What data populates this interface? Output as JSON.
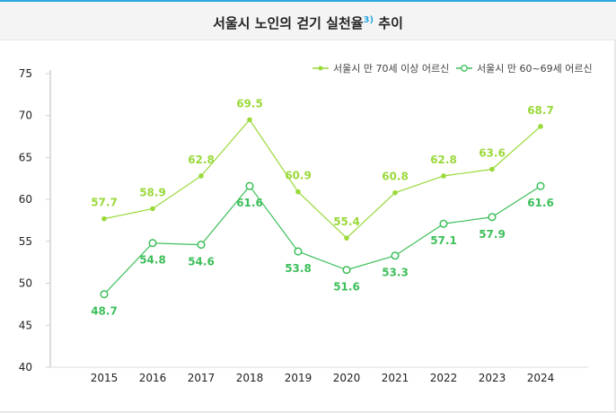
{
  "title": {
    "text": "서울시 노인의 걷기 실천율",
    "footnote": "3)",
    "suffix": " 추이"
  },
  "colors": {
    "accent_top": "#2aa7e0",
    "series_70_plus": "#9ad93a",
    "series_60_69": "#3dbf5a"
  },
  "chart_data": {
    "type": "line",
    "title": "서울시 노인의 걷기 실천율3) 추이",
    "x": [
      "2015",
      "2016",
      "2017",
      "2018",
      "2019",
      "2020",
      "2021",
      "2022",
      "2023",
      "2024"
    ],
    "ylim": [
      40,
      75
    ],
    "yticks": [
      "40",
      "45",
      "50",
      "55",
      "60",
      "65",
      "70",
      "75"
    ],
    "grid": false,
    "legend_position": "top-right",
    "series": [
      {
        "name": "서울시 만 70세 이상 어르신",
        "marker": "filled-circle",
        "label_position": "above",
        "values": [
          57.7,
          58.9,
          62.8,
          69.5,
          60.9,
          55.4,
          60.8,
          62.8,
          63.6,
          68.7
        ]
      },
      {
        "name": "서울시 만 60~69세 어르신",
        "marker": "hollow-circle",
        "label_position": "below",
        "values": [
          48.7,
          54.8,
          54.6,
          61.6,
          53.8,
          51.6,
          53.3,
          57.1,
          57.9,
          61.6
        ]
      }
    ]
  }
}
